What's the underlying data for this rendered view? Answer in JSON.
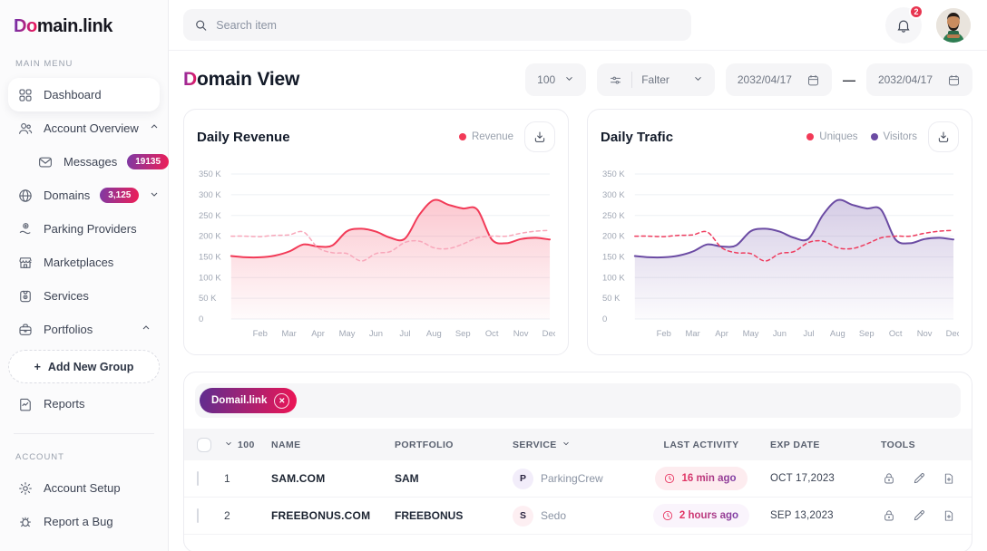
{
  "topbar": {
    "search_placeholder": "Search item",
    "notifications_count": "2"
  },
  "sidebar": {
    "logo_prefix": "Do",
    "logo_main": "main",
    "logo_dot": ".",
    "logo_suffix": "link",
    "section_main": "MAIN MENU",
    "section_account": "ACCOUNT",
    "items": [
      {
        "label": "Dashboard"
      },
      {
        "label": "Account Overview"
      },
      {
        "label": "Messages",
        "badge": "19135"
      },
      {
        "label": "Domains",
        "badge": "3,125"
      },
      {
        "label": "Parking Providers"
      },
      {
        "label": "Marketplaces"
      },
      {
        "label": "Services"
      },
      {
        "label": "Portfolios"
      },
      {
        "label": "Add New Group",
        "prefix": "+"
      },
      {
        "label": "Reports"
      }
    ],
    "account_items": [
      {
        "label": "Account Setup"
      },
      {
        "label": "Report a Bug"
      }
    ]
  },
  "header": {
    "title_first": "D",
    "title_rest": "omain View",
    "page_size": "100",
    "filter_label": "Falter",
    "date_from": "2032/04/17",
    "date_sep": "—",
    "date_to": "2032/04/17"
  },
  "chart_data": [
    {
      "type": "area",
      "title": "Daily Revenue",
      "legend": [
        {
          "label": "Revenue",
          "color": "#f23a57"
        }
      ],
      "x_tick_labels": [
        "Feb",
        "Mar",
        "Apr",
        "May",
        "Jun",
        "Jul",
        "Aug",
        "Sep",
        "Oct",
        "Nov",
        "Dec"
      ],
      "y_tick_labels": [
        "350 K",
        "300 K",
        "250 K",
        "200 K",
        "150 K",
        "100 K",
        "50 K",
        "0"
      ],
      "y_tick_values": [
        350,
        300,
        250,
        200,
        150,
        100,
        50,
        0
      ],
      "ylim": [
        0,
        372
      ],
      "grid": true,
      "legend_position": "top-right",
      "series": [
        {
          "name": "Revenue",
          "style": "solid",
          "color": "#f23a57",
          "fill": true,
          "values_k": [
            152,
            149,
            149,
            153,
            163,
            180,
            175,
            178,
            212,
            218,
            211,
            196,
            194,
            252,
            287,
            276,
            267,
            264,
            192,
            183,
            193,
            196,
            192
          ]
        },
        {
          "name": "Revenue (dashed comparison)",
          "style": "dashed",
          "color": "#f8a7ba",
          "fill": false,
          "values_k": [
            200,
            200,
            199,
            202,
            203,
            210,
            172,
            160,
            158,
            140,
            158,
            163,
            185,
            188,
            172,
            170,
            181,
            196,
            200,
            200,
            207,
            212,
            214
          ]
        }
      ]
    },
    {
      "type": "area",
      "title": "Daily Trafic",
      "legend": [
        {
          "label": "Uniques",
          "color": "#f23a57"
        },
        {
          "label": "Visitors",
          "color": "#6b4ba3"
        }
      ],
      "x_tick_labels": [
        "Feb",
        "Mar",
        "Apr",
        "May",
        "Jun",
        "Jul",
        "Aug",
        "Sep",
        "Oct",
        "Nov",
        "Dec"
      ],
      "y_tick_labels": [
        "350 K",
        "300 K",
        "250 K",
        "200 K",
        "150 K",
        "100 K",
        "50 K",
        "0"
      ],
      "y_tick_values": [
        350,
        300,
        250,
        200,
        150,
        100,
        50,
        0
      ],
      "ylim": [
        0,
        372
      ],
      "grid": true,
      "legend_position": "top-right",
      "series": [
        {
          "name": "Visitors",
          "style": "solid",
          "color": "#6b4ba3",
          "fill": true,
          "values_k": [
            152,
            149,
            149,
            153,
            163,
            180,
            175,
            178,
            212,
            218,
            211,
            196,
            194,
            252,
            287,
            276,
            267,
            264,
            192,
            183,
            193,
            196,
            192
          ]
        },
        {
          "name": "Uniques",
          "style": "dashed",
          "color": "#ee3d5f",
          "fill": false,
          "values_k": [
            200,
            200,
            199,
            202,
            203,
            210,
            172,
            160,
            158,
            140,
            158,
            163,
            185,
            188,
            172,
            170,
            181,
            196,
            200,
            200,
            207,
            212,
            214
          ]
        }
      ]
    }
  ],
  "table": {
    "chip_label": "Domail.link",
    "select_count": "100",
    "columns": {
      "name": "NAME",
      "portfolio": "PORTFOLIO",
      "service": "SERVICE",
      "last_activity": "LAST ACTIVITY",
      "exp_date": "EXP DATE",
      "tools": "TOOLS"
    },
    "rows": [
      {
        "index": "1",
        "name": "SAM.COM",
        "portfolio": "SAM",
        "service_initial": "P",
        "service": "ParkingCrew",
        "last_activity": "16 min ago",
        "exp_date": "OCT 17,2023",
        "badge_bg": "#f2edfa",
        "pill_bg": "#fdecef"
      },
      {
        "index": "2",
        "name": "FREEBONUS.COM",
        "portfolio": "FREEBONUS",
        "service_initial": "S",
        "service": "Sedo",
        "last_activity": "2 hours ago",
        "exp_date": "SEP 13,2023",
        "badge_bg": "#fdeff2",
        "pill_bg": "#faf4fc"
      }
    ]
  },
  "colors": {
    "accent_from": "#7d3aa5",
    "accent_to": "#ef1e56"
  }
}
